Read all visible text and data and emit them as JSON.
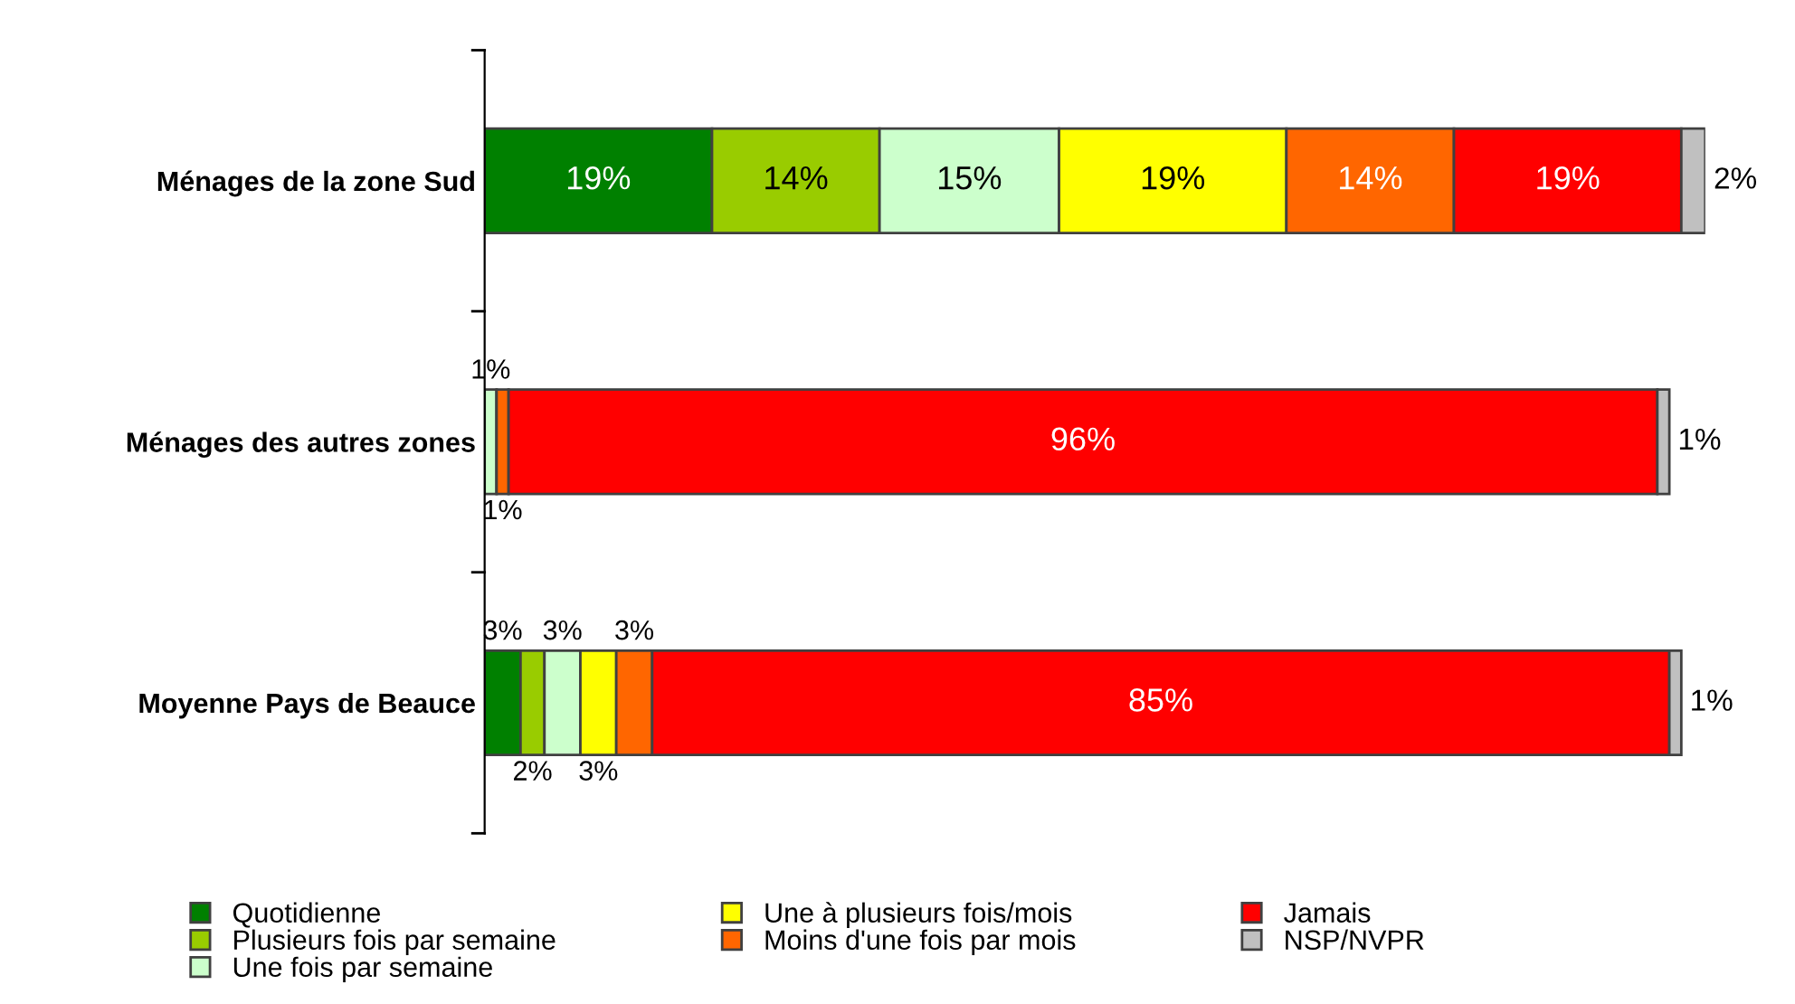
{
  "chart_data": {
    "type": "bar",
    "orientation": "horizontal",
    "stacked": true,
    "legend": "bottom",
    "grid": false,
    "categories": [
      "Ménages de la zone Sud",
      "Ménages des autres zones",
      "Moyenne Pays de Beauce"
    ],
    "series": [
      {
        "name": "Quotidienne",
        "color": "#008000",
        "values": [
          19,
          0,
          3
        ],
        "value_labels": [
          "19%",
          null,
          "3%"
        ]
      },
      {
        "name": "Plusieurs fois par semaine",
        "color": "#99cc00",
        "values": [
          14,
          0,
          2
        ],
        "value_labels": [
          "14%",
          null,
          "2%"
        ]
      },
      {
        "name": "Une fois par semaine",
        "color": "#ccffcc",
        "values": [
          15,
          1,
          3
        ],
        "value_labels": [
          "15%",
          "1%",
          "3%"
        ]
      },
      {
        "name": "Une à plusieurs fois/mois",
        "color": "#ffff00",
        "values": [
          19,
          0,
          3
        ],
        "value_labels": [
          "19%",
          null,
          "3%"
        ]
      },
      {
        "name": "Moins d'une fois par mois",
        "color": "#ff6600",
        "values": [
          14,
          1,
          3
        ],
        "value_labels": [
          "14%",
          "1%",
          "3%"
        ]
      },
      {
        "name": "Jamais",
        "color": "#ff0000",
        "values": [
          19,
          96,
          85
        ],
        "value_labels": [
          "19%",
          "96%",
          "85%"
        ]
      },
      {
        "name": "NSP/NVPR",
        "color": "#c0c0c0",
        "values": [
          2,
          1,
          1
        ],
        "value_labels": [
          "2%",
          "1%",
          "1%"
        ]
      }
    ]
  }
}
